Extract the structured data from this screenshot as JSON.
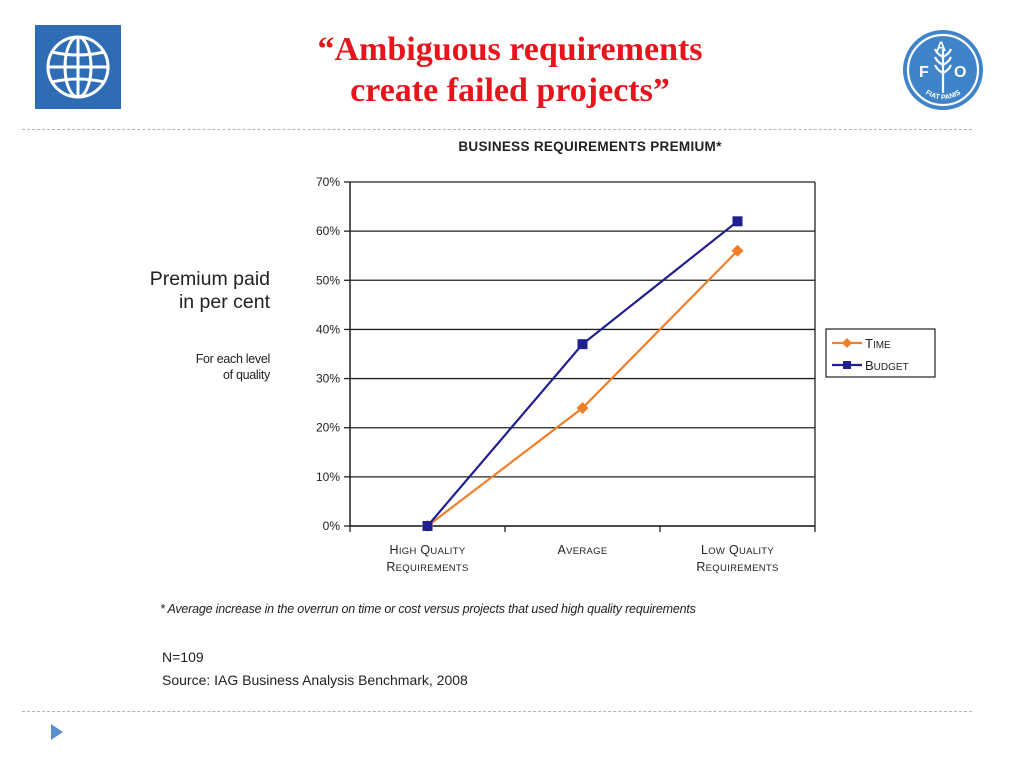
{
  "slide": {
    "title_line1": "“Ambiguous requirements",
    "title_line2": "create failed projects”",
    "title_color": "#e8141c",
    "logos": [
      {
        "name": "world-bank-logo-icon",
        "color": "#2e6db4"
      },
      {
        "name": "fao-logo-icon",
        "color": "#3f83c8",
        "text": "FIAT PANIS"
      }
    ],
    "y_caption": [
      "Premium paid",
      "in per cent"
    ],
    "y_subcaption": [
      "For each level",
      "of quality"
    ],
    "footnote": "* Average increase in the overrun on time or cost versus projects that used high quality requirements",
    "n_text": "N=109",
    "source_text": "Source:  IAG Business Analysis Benchmark, 2008",
    "nav_arrow": "triangle-right-icon"
  },
  "chart_data": {
    "type": "line",
    "title": "BUSINESS REQUIREMENTS PREMIUM*",
    "categories": [
      [
        "High Quality",
        "Requirements"
      ],
      [
        "Average"
      ],
      [
        "Low Quality",
        "Requirements"
      ]
    ],
    "series": [
      {
        "name": "Time",
        "values": [
          0,
          24,
          56
        ],
        "color": "#f07f2a",
        "marker": "diamond"
      },
      {
        "name": "Budget",
        "values": [
          0,
          37,
          62
        ],
        "color": "#1f1f8f",
        "marker": "square"
      }
    ],
    "ylim": [
      0,
      70
    ],
    "yticks": [
      "0%",
      "10%",
      "20%",
      "30%",
      "40%",
      "50%",
      "60%",
      "70%"
    ],
    "grid": true,
    "legend_position": "right"
  }
}
